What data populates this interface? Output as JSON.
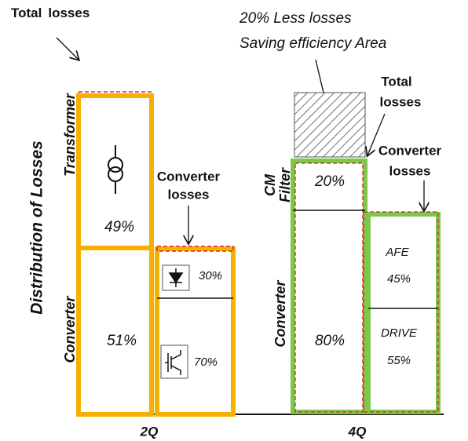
{
  "axis_label": "Distribution of Losses",
  "groups": [
    {
      "label": "2Q",
      "total_note": [
        "Total",
        "losses"
      ],
      "converter_note": [
        "Converter",
        "losses"
      ],
      "stack": [
        {
          "name": "Transformer",
          "share": "49%"
        },
        {
          "name": "Converter",
          "share": "51%"
        }
      ],
      "converter_parts": [
        {
          "share": "30%"
        },
        {
          "share": "70%"
        }
      ]
    },
    {
      "label": "4Q",
      "saving_note": [
        "20%  Less losses",
        "Saving efficiency Area"
      ],
      "total_note": [
        "Total",
        "losses"
      ],
      "converter_note": [
        "Converter",
        "losses"
      ],
      "stack": [
        {
          "name": [
            "CM",
            "Filter"
          ],
          "share": "20%"
        },
        {
          "name": "Converter",
          "share": "80%"
        }
      ],
      "converter_parts": [
        {
          "name": "AFE",
          "share": "45%"
        },
        {
          "name": "DRIVE",
          "share": "55%"
        }
      ]
    }
  ]
}
